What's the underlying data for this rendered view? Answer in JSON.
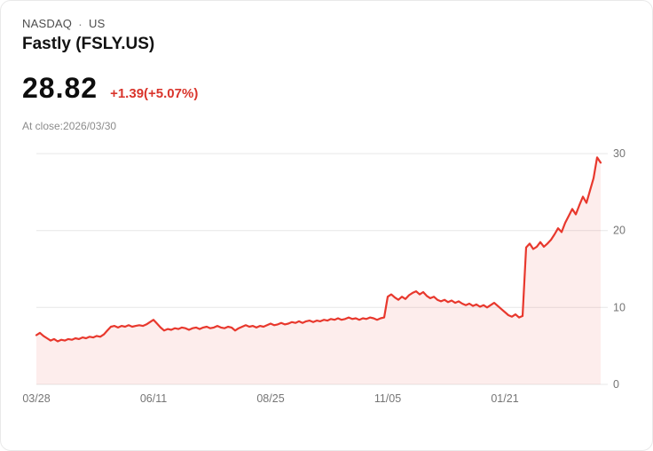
{
  "header": {
    "exchange": "NASDAQ",
    "separator": "·",
    "region": "US",
    "title": "Fastly (FSLY.US)"
  },
  "quote": {
    "price": "28.82",
    "change": "+1.39(+5.07%)",
    "at_close": "At close:2026/03/30"
  },
  "colors": {
    "accent_red": "#d9342b",
    "price_text": "#0d0d0d"
  },
  "chart_data": {
    "type": "area",
    "xlabel": "",
    "ylabel": "",
    "ylim": [
      0,
      30
    ],
    "yticks": [
      0,
      10,
      20,
      30
    ],
    "grid": true,
    "legend": "none",
    "line_color": "#e8382d",
    "fill_color": "rgba(232,56,45,0.09)",
    "grid_color": "#e7e7e7",
    "axis_text_color": "#757575",
    "xticks": [
      {
        "label": "03/28",
        "index": 0
      },
      {
        "label": "06/11",
        "index": 33
      },
      {
        "label": "08/25",
        "index": 66
      },
      {
        "label": "11/05",
        "index": 99
      },
      {
        "label": "01/21",
        "index": 132
      }
    ],
    "values": [
      6.4,
      6.7,
      6.3,
      6.0,
      5.7,
      5.9,
      5.6,
      5.8,
      5.7,
      5.9,
      5.8,
      6.0,
      5.9,
      6.1,
      6.0,
      6.2,
      6.1,
      6.3,
      6.2,
      6.5,
      7.0,
      7.5,
      7.6,
      7.4,
      7.6,
      7.5,
      7.7,
      7.5,
      7.6,
      7.7,
      7.6,
      7.8,
      8.1,
      8.4,
      7.9,
      7.4,
      7.0,
      7.2,
      7.1,
      7.3,
      7.2,
      7.4,
      7.3,
      7.1,
      7.3,
      7.4,
      7.2,
      7.4,
      7.5,
      7.3,
      7.4,
      7.6,
      7.4,
      7.3,
      7.5,
      7.4,
      7.0,
      7.3,
      7.5,
      7.7,
      7.5,
      7.6,
      7.4,
      7.6,
      7.5,
      7.7,
      7.9,
      7.7,
      7.8,
      8.0,
      7.8,
      7.9,
      8.1,
      8.0,
      8.2,
      8.0,
      8.2,
      8.3,
      8.1,
      8.3,
      8.2,
      8.4,
      8.3,
      8.5,
      8.4,
      8.6,
      8.4,
      8.5,
      8.7,
      8.5,
      8.6,
      8.4,
      8.6,
      8.5,
      8.7,
      8.6,
      8.4,
      8.6,
      8.7,
      11.4,
      11.7,
      11.3,
      11.0,
      11.4,
      11.1,
      11.6,
      11.9,
      12.1,
      11.7,
      12.0,
      11.5,
      11.2,
      11.4,
      11.0,
      10.8,
      11.0,
      10.7,
      10.9,
      10.6,
      10.8,
      10.5,
      10.3,
      10.5,
      10.2,
      10.4,
      10.1,
      10.3,
      10.0,
      10.3,
      10.6,
      10.2,
      9.8,
      9.4,
      9.0,
      8.8,
      9.1,
      8.7,
      8.9,
      17.8,
      18.3,
      17.6,
      17.9,
      18.5,
      17.9,
      18.3,
      18.8,
      19.5,
      20.3,
      19.8,
      21.0,
      21.9,
      22.8,
      22.1,
      23.3,
      24.4,
      23.6,
      25.2,
      26.8,
      29.5,
      28.82
    ]
  }
}
